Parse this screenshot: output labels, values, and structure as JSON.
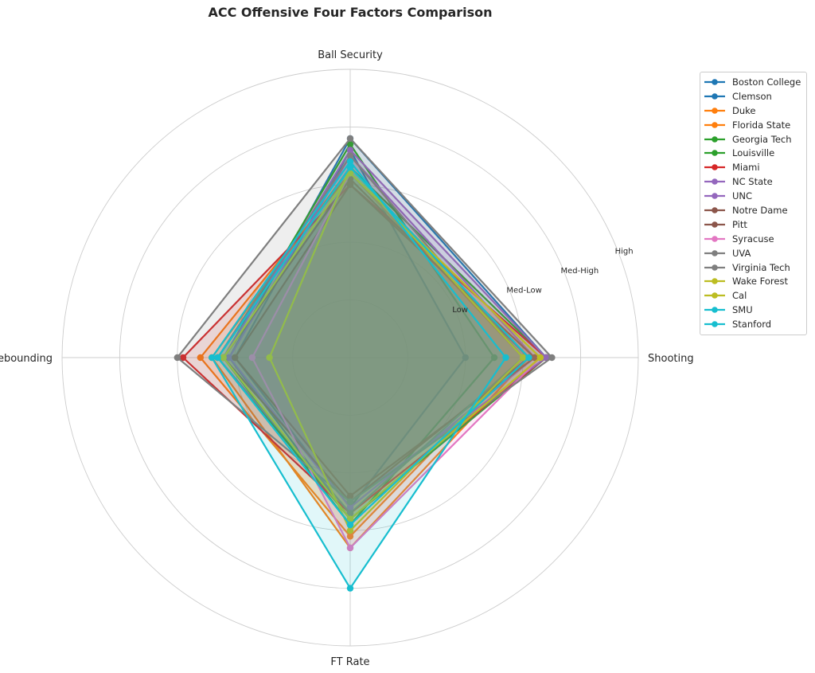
{
  "chart_data": {
    "type": "radar",
    "title": "ACC Offensive Four Factors Comparison",
    "axes": [
      "Ball Security",
      "Shooting",
      "FT Rate",
      "Off Rebounding"
    ],
    "ring_levels": [
      1,
      2,
      3,
      4,
      5
    ],
    "ring_labels": [
      "",
      "Low",
      "Med-Low",
      "Med-High",
      "High"
    ],
    "range": [
      0,
      5
    ],
    "grid": true,
    "legend_position": "right",
    "series": [
      {
        "name": "Boston College",
        "color": "#1f77b4",
        "values": [
          3.6,
          2.0,
          2.6,
          2.0
        ]
      },
      {
        "name": "Clemson",
        "color": "#1f77b4",
        "values": [
          3.8,
          3.4,
          2.8,
          2.1
        ]
      },
      {
        "name": "Duke",
        "color": "#ff7f0e",
        "values": [
          3.3,
          3.1,
          3.3,
          2.4
        ]
      },
      {
        "name": "Florida State",
        "color": "#ff7f0e",
        "values": [
          3.2,
          3.0,
          3.1,
          2.6
        ]
      },
      {
        "name": "Georgia Tech",
        "color": "#2ca02c",
        "values": [
          3.7,
          2.5,
          2.9,
          2.2
        ]
      },
      {
        "name": "Louisville",
        "color": "#2ca02c",
        "values": [
          3.3,
          3.4,
          2.8,
          2.3
        ]
      },
      {
        "name": "Miami",
        "color": "#d62728",
        "values": [
          3.0,
          3.4,
          2.7,
          2.9
        ]
      },
      {
        "name": "NC State",
        "color": "#9467bd",
        "values": [
          3.6,
          3.4,
          2.5,
          2.2
        ]
      },
      {
        "name": "UNC",
        "color": "#9467bd",
        "values": [
          3.5,
          3.2,
          2.6,
          2.1
        ]
      },
      {
        "name": "Notre Dame",
        "color": "#8c564b",
        "values": [
          3.0,
          3.2,
          2.4,
          2.0
        ]
      },
      {
        "name": "Pitt",
        "color": "#8c564b",
        "values": [
          3.1,
          3.1,
          2.5,
          2.2
        ]
      },
      {
        "name": "Syracuse",
        "color": "#e377c2",
        "values": [
          3.2,
          3.3,
          3.3,
          1.7
        ]
      },
      {
        "name": "UVA",
        "color": "#7f7f7f",
        "values": [
          3.8,
          3.5,
          2.5,
          3.0
        ]
      },
      {
        "name": "Virginia Tech",
        "color": "#7f7f7f",
        "values": [
          3.5,
          3.0,
          2.7,
          2.3
        ]
      },
      {
        "name": "Wake Forest",
        "color": "#bcbd22",
        "values": [
          3.3,
          3.0,
          3.0,
          1.4
        ]
      },
      {
        "name": "Cal",
        "color": "#bcbd22",
        "values": [
          3.2,
          3.3,
          2.8,
          2.2
        ]
      },
      {
        "name": "SMU",
        "color": "#17becf",
        "values": [
          3.4,
          2.7,
          4.0,
          2.4
        ]
      },
      {
        "name": "Stanford",
        "color": "#17becf",
        "values": [
          3.3,
          3.1,
          2.9,
          2.3
        ]
      }
    ]
  }
}
